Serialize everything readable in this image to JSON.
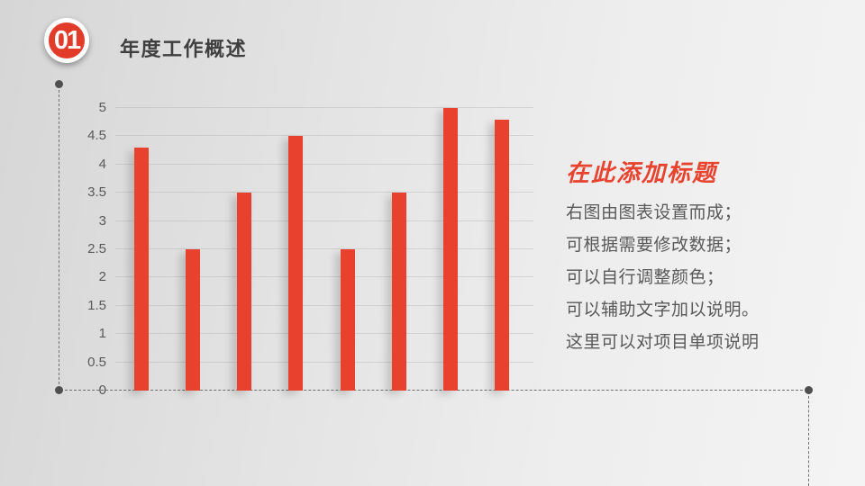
{
  "slide": {
    "badge_number": "01",
    "title": "年度工作概述"
  },
  "chart_data": {
    "type": "bar",
    "values": [
      4.3,
      2.5,
      3.5,
      4.5,
      2.5,
      3.5,
      5,
      4.8
    ],
    "title": "",
    "xlabel": "",
    "ylabel": "",
    "ylim": [
      0,
      5
    ],
    "yticks": [
      "5",
      "4.5",
      "4",
      "3.5",
      "3",
      "2.5",
      "2",
      "1.5",
      "1",
      "0.5",
      "0"
    ],
    "grid": true,
    "legend": false,
    "bar_color": "#e8412e"
  },
  "text_panel": {
    "heading": "在此添加标题",
    "lines": [
      "右图由图表设置而成；",
      "可根据需要修改数据；",
      "可以自行调整颜色；",
      "可以辅助文字加以说明。",
      "这里可以对项目单项说明"
    ]
  },
  "colors": {
    "accent_red": "#e8432f",
    "badge_red": "#e23b2a",
    "title_gray": "#3f3f3f",
    "body_gray": "#595959",
    "dash_gray": "#707070"
  }
}
